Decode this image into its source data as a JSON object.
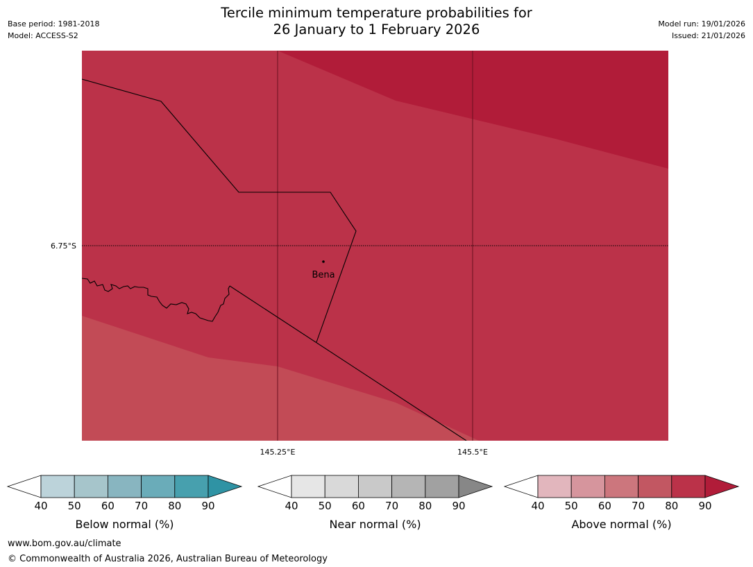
{
  "header": {
    "title_line1": "Tercile minimum temperature probabilities for",
    "title_line2": "26 January to 1 February 2026",
    "base_period": "Base period: 1981-2018",
    "model": "Model: ACCESS-S2",
    "model_run": "Model run: 19/01/2026",
    "issued": "Issued: 21/01/2026"
  },
  "map": {
    "lat_label": "6.75°S",
    "lon_labels": [
      "145.25°E",
      "145.5°E"
    ],
    "place": {
      "name": "Bena"
    },
    "colors": {
      "above_90": "#b11c39",
      "above_80": "#bb3249",
      "above_70": "#c24b56",
      "boundary": "#000000"
    }
  },
  "colorbars": [
    {
      "id": "below",
      "label": "Below normal (%)",
      "ticks": [
        "40",
        "50",
        "60",
        "70",
        "80",
        "90"
      ],
      "colors": [
        "#ffffff",
        "#bcd3da",
        "#a6c5cb",
        "#88b5c0",
        "#6aacb9",
        "#47a0ae",
        "#2f93a4"
      ]
    },
    {
      "id": "near",
      "label": "Near normal (%)",
      "ticks": [
        "40",
        "50",
        "60",
        "70",
        "80",
        "90"
      ],
      "colors": [
        "#ffffff",
        "#e6e6e6",
        "#d9d9d9",
        "#c9c9c9",
        "#b5b5b5",
        "#a1a1a1",
        "#878787"
      ]
    },
    {
      "id": "above",
      "label": "Above normal (%)",
      "ticks": [
        "40",
        "50",
        "60",
        "70",
        "80",
        "90"
      ],
      "colors": [
        "#ffffff",
        "#e2b6bd",
        "#d6959d",
        "#cc767d",
        "#c25762",
        "#bb3249",
        "#b11c39"
      ]
    }
  ],
  "footer": {
    "url": "www.bom.gov.au/climate",
    "copyright": "© Commonwealth of Australia 2026, Australian Bureau of Meteorology"
  }
}
